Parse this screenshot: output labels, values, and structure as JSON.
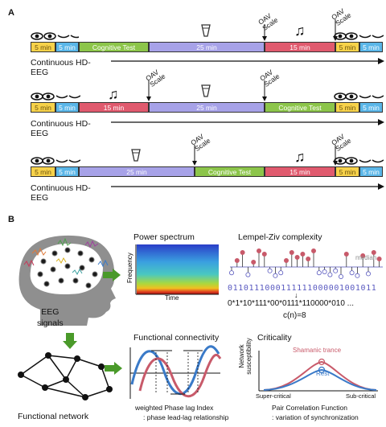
{
  "panel_a": {
    "label": "A",
    "oav_scale": "OAV\nScale",
    "continuous": "Continuous HD-\nEEG",
    "row1": {
      "s1": "5 min",
      "s2": "5 min",
      "s3": "Cognitive Test",
      "s4": "25 min",
      "s5": "15 min",
      "s6": "5 min",
      "s7": "5 min"
    },
    "row2": {
      "s1": "5 min",
      "s2": "5 min",
      "s3": "15 min",
      "s4": "25 min",
      "s5": "Cognitive Test",
      "s6": "5 min",
      "s7": "5 min"
    },
    "row3": {
      "s1": "5 min",
      "s2": "5 min",
      "s3": "25 min",
      "s4": "Cognitive Test",
      "s5": "15 min",
      "s6": "5 min",
      "s7": "5 min"
    }
  },
  "panel_b": {
    "label": "B",
    "eeg_signals": "EEG\nsignals",
    "functional_network": "Functional network",
    "power_spectrum": "Power spectrum",
    "frequency": "Frequency",
    "time": "Time",
    "lempel_ziv": "Lempel-Ziv complexity",
    "median": "median",
    "binary": "0110111000111111000001001011",
    "encoded": "0*1*10*111*00*0111*110000*010 ...",
    "cn": "c(n)=8",
    "functional_connectivity": "Functional connectivity",
    "wpli": "weighted Phase lag Index",
    "wpli_sub": ": phase lead-lag relationship",
    "criticality": "Criticality",
    "shamanic": "Shamanic trance",
    "rest": "Rest",
    "network_sus": "Network\nsusceptibility",
    "super_critical": "Super-critical",
    "sub_critical": "Sub-critical",
    "pcf": "Pair Correlation Function",
    "pcf_sub": ": variation of synchronization"
  },
  "colors": {
    "yellow": "#f7d24a",
    "blue": "#5ab6e8",
    "green": "#8cc54a",
    "purple": "#a7a2e8",
    "red": "#e05a6e",
    "arrow_green": "#4a9a2a"
  }
}
